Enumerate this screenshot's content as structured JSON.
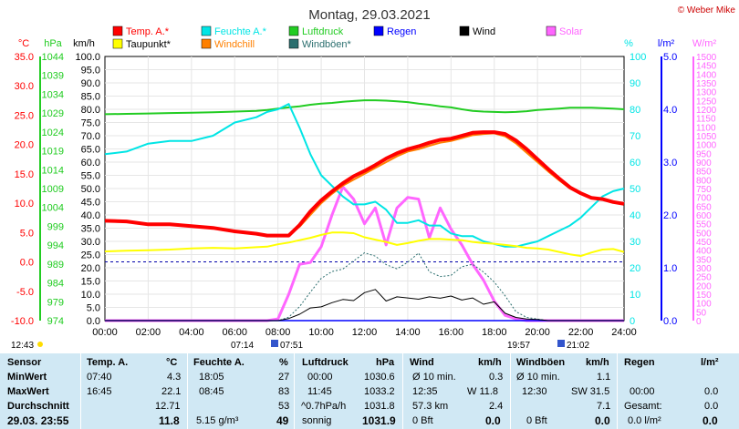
{
  "title": "Montag, 29.03.2021",
  "credit": "© Weber Mike",
  "colors": {
    "temp": "#ff0000",
    "dew": "#ffff00",
    "humidity": "#00e5e5",
    "windchill": "#ff8000",
    "pressure": "#22cc22",
    "gust": "#2a6e6e",
    "rain": "#0000ff",
    "wind": "#000000",
    "solar": "#ff66ff"
  },
  "legend": [
    {
      "label": "Temp. A.*",
      "key": "temp"
    },
    {
      "label": "Feuchte A.*",
      "key": "humidity"
    },
    {
      "label": "Luftdruck",
      "key": "pressure"
    },
    {
      "label": "Regen",
      "key": "rain"
    },
    {
      "label": "Wind",
      "key": "wind"
    },
    {
      "label": "Solar",
      "key": "solar"
    },
    {
      "label": "Taupunkt*",
      "key": "dew"
    },
    {
      "label": "Windchill",
      "key": "windchill"
    },
    {
      "label": "Windböen*",
      "key": "gust"
    }
  ],
  "axis_headers": {
    "temp": "°C",
    "pressure": "hPa",
    "wind": "km/h",
    "humidity": "%",
    "rain": "l/m²",
    "solar": "W/m²"
  },
  "axis_ticks": {
    "temp": [
      "35.0",
      "30.0",
      "25.0",
      "20.0",
      "15.0",
      "10.0",
      "5.0",
      "0.0",
      "-5.0",
      "-10.0"
    ],
    "pressure": [
      "1044",
      "1039",
      "1034",
      "1029",
      "1024",
      "1019",
      "1014",
      "1009",
      "1004",
      "999",
      "994",
      "989",
      "984",
      "979",
      "974"
    ],
    "wind": [
      "100.0",
      "95.0",
      "90.0",
      "85.0",
      "80.0",
      "75.0",
      "70.0",
      "65.0",
      "60.0",
      "55.0",
      "50.0",
      "45.0",
      "40.0",
      "35.0",
      "30.0",
      "25.0",
      "20.0",
      "15.0",
      "10.0",
      "5.0",
      "0.0"
    ],
    "humidity": [
      "100",
      "90",
      "80",
      "70",
      "60",
      "50",
      "40",
      "30",
      "20",
      "10",
      "0"
    ],
    "rain": [
      "5.0",
      "4.0",
      "3.0",
      "2.0",
      "1.0",
      "0.0"
    ],
    "solar": [
      "1500",
      "1450",
      "1400",
      "1350",
      "1300",
      "1250",
      "1200",
      "1150",
      "1100",
      "1050",
      "1000",
      "950",
      "900",
      "850",
      "800",
      "750",
      "700",
      "650",
      "600",
      "550",
      "500",
      "450",
      "400",
      "350",
      "300",
      "250",
      "200",
      "150",
      "100",
      "50",
      "0"
    ],
    "time": [
      "00:00",
      "02:00",
      "04:00",
      "06:00",
      "08:00",
      "10:00",
      "12:00",
      "14:00",
      "16:00",
      "18:00",
      "20:00",
      "22:00",
      "24:00"
    ]
  },
  "sun_times": {
    "now": "12:43",
    "sunrise_a": "07:14",
    "sunrise_b": "07:51",
    "sunset_a": "19:57",
    "sunset_b": "21:02"
  },
  "chart_data": {
    "type": "line",
    "title": "Montag, 29.03.2021",
    "xlabel": "",
    "xlim": [
      "00:00",
      "24:00"
    ],
    "x_hours": [
      0,
      1,
      2,
      3,
      4,
      5,
      6,
      7,
      7.5,
      8,
      8.5,
      9,
      9.5,
      10,
      10.5,
      11,
      11.5,
      12,
      12.5,
      13,
      13.5,
      14,
      14.5,
      15,
      15.5,
      16,
      16.5,
      17,
      17.5,
      18,
      18.5,
      19,
      19.5,
      20,
      20.5,
      21,
      21.5,
      22,
      22.5,
      23,
      23.5,
      24
    ],
    "series": [
      {
        "name": "Temp. A.*",
        "unit": "°C",
        "ylim": [
          -10,
          35
        ],
        "values": [
          7.0,
          6.9,
          6.4,
          6.4,
          6.1,
          5.8,
          5.2,
          4.8,
          4.5,
          4.5,
          4.5,
          6.3,
          8.6,
          10.5,
          12.0,
          13.4,
          14.6,
          15.5,
          16.5,
          17.6,
          18.5,
          19.2,
          19.7,
          20.3,
          20.8,
          21.0,
          21.5,
          22.0,
          22.1,
          22.1,
          21.8,
          20.7,
          19.2,
          17.5,
          15.8,
          14.2,
          12.7,
          11.7,
          10.9,
          10.7,
          10.2,
          9.9
        ]
      },
      {
        "name": "Taupunkt*",
        "unit": "°C",
        "ylim": [
          -10,
          35
        ],
        "values": [
          1.8,
          1.9,
          2.0,
          2.1,
          2.3,
          2.4,
          2.3,
          2.5,
          2.6,
          3.0,
          3.3,
          3.7,
          4.1,
          4.6,
          5.0,
          5.0,
          4.9,
          4.2,
          3.8,
          3.4,
          2.9,
          3.2,
          3.6,
          3.9,
          3.9,
          3.8,
          3.7,
          3.4,
          3.2,
          3.1,
          2.9,
          2.7,
          2.4,
          2.3,
          2.1,
          1.7,
          1.3,
          1.0,
          1.6,
          2.1,
          2.2,
          1.7
        ]
      },
      {
        "name": "Windchill",
        "unit": "°C",
        "ylim": [
          -10,
          35
        ],
        "values": [
          7.0,
          6.9,
          6.4,
          6.4,
          6.1,
          5.8,
          5.2,
          4.8,
          4.5,
          4.5,
          4.5,
          6.0,
          8.0,
          10.0,
          11.6,
          13.0,
          14.0,
          15.0,
          16.0,
          17.0,
          18.0,
          18.8,
          19.2,
          19.8,
          20.3,
          20.6,
          21.1,
          21.6,
          21.8,
          21.9,
          21.4,
          20.2,
          18.6,
          17.0,
          15.4,
          13.9,
          12.5,
          11.6,
          10.9,
          10.6,
          10.2,
          9.9
        ]
      },
      {
        "name": "Feuchte A.*",
        "unit": "%",
        "ylim": [
          0,
          100
        ],
        "values": [
          63,
          64,
          67,
          68,
          68,
          70,
          75,
          77,
          79,
          80,
          82,
          73,
          63,
          55,
          51,
          47,
          44,
          44,
          45,
          42,
          37,
          37,
          38,
          36,
          36,
          33,
          32,
          32,
          30,
          29,
          28,
          28,
          29,
          30,
          32,
          34,
          36,
          39,
          43,
          47,
          49,
          50
        ]
      },
      {
        "name": "Luftdruck",
        "unit": "hPa",
        "ylim": [
          974,
          1044
        ],
        "values": [
          1028.7,
          1028.8,
          1028.9,
          1029.0,
          1029.1,
          1029.2,
          1029.4,
          1029.6,
          1029.8,
          1030.2,
          1030.5,
          1030.8,
          1031.2,
          1031.5,
          1031.7,
          1032.0,
          1032.2,
          1032.4,
          1032.4,
          1032.3,
          1032.1,
          1031.9,
          1031.5,
          1031.2,
          1030.8,
          1030.5,
          1030.0,
          1029.6,
          1029.4,
          1029.3,
          1029.2,
          1029.3,
          1029.5,
          1029.8,
          1030.0,
          1030.2,
          1030.4,
          1030.4,
          1030.4,
          1030.3,
          1030.2,
          1030.0
        ]
      },
      {
        "name": "Wind",
        "unit": "km/h",
        "ylim": [
          0,
          100
        ],
        "values": [
          0,
          0,
          0,
          0,
          0,
          0,
          0,
          0,
          0,
          0,
          0.8,
          2.4,
          4.8,
          5.2,
          6.8,
          8.0,
          7.6,
          10.6,
          11.8,
          7.4,
          9.0,
          8.6,
          8.1,
          9.0,
          8.5,
          9.3,
          7.8,
          8.6,
          6.2,
          7.1,
          2.8,
          1.2,
          0.6,
          0.4,
          0,
          0,
          0,
          0,
          0,
          0,
          0,
          0
        ]
      },
      {
        "name": "Windböen*",
        "unit": "km/h",
        "ylim": [
          0,
          100
        ],
        "values": [
          0,
          0,
          0,
          0,
          0,
          0,
          0,
          0,
          0,
          0,
          1.3,
          5.3,
          10.8,
          16.0,
          18.6,
          19.5,
          22.6,
          25.7,
          24.4,
          21.2,
          19.6,
          22.1,
          25.6,
          18.5,
          16.7,
          17.1,
          20.4,
          21.3,
          18.4,
          14.6,
          9.4,
          3.4,
          1.2,
          0.6,
          0,
          0,
          0,
          0,
          0,
          0,
          0,
          0
        ]
      },
      {
        "name": "Solar",
        "unit": "W/m²",
        "ylim": [
          0,
          1500
        ],
        "values": [
          0,
          0,
          0,
          0,
          0,
          0,
          0,
          0,
          0,
          10,
          150,
          320,
          330,
          420,
          600,
          760,
          690,
          550,
          640,
          430,
          640,
          700,
          690,
          470,
          640,
          520,
          430,
          320,
          230,
          110,
          30,
          10,
          0,
          0,
          0,
          0,
          0,
          0,
          0,
          0,
          0,
          0
        ]
      },
      {
        "name": "Regen",
        "unit": "l/m²",
        "ylim": [
          0,
          5
        ],
        "values": [
          0,
          0,
          0,
          0,
          0,
          0,
          0,
          0,
          0,
          0,
          0,
          0,
          0,
          0,
          0,
          0,
          0,
          0,
          0,
          0,
          0,
          0,
          0,
          0,
          0,
          0,
          0,
          0,
          0,
          0,
          0,
          0,
          0,
          0,
          0,
          0,
          0,
          0,
          0,
          0,
          0,
          0
        ]
      }
    ],
    "reference_line": {
      "axis": "temp",
      "value": 0,
      "style": "dashed"
    }
  },
  "stats": {
    "row_labels": [
      "Sensor",
      "MinWert",
      "MaxWert",
      "Durchschnitt",
      "29.03. 23:55"
    ],
    "temp": {
      "header": "Temp. A.",
      "unit": "°C",
      "min_time": "07:40",
      "min": "4.3",
      "max_time": "16:45",
      "max": "22.1",
      "avg": "12.71",
      "current": "11.8"
    },
    "humidity": {
      "header": "Feuchte A.",
      "unit": "%",
      "min_time": "18:05",
      "min": "27",
      "max_time": "08:45",
      "max": "83",
      "avg": "53",
      "extra": "5.15 g/m³",
      "current": "49"
    },
    "pressure": {
      "header": "Luftdruck",
      "unit": "hPa",
      "min_time": "00:00",
      "min": "1030.6",
      "max_time": "11:45",
      "max": "1033.2",
      "trend": "^0.7hPa/h",
      "avg": "1031.8",
      "condition": "sonnig",
      "current": "1031.9"
    },
    "wind": {
      "header": "Wind",
      "unit": "km/h",
      "r1_label": "Ø 10 min.",
      "r1_value": "0.3",
      "r2_time": "12:35",
      "r2_value": "W 11.8",
      "r3_label": "57.3 km",
      "r3_value": "2.4",
      "r4_label": "0 Bft",
      "current": "0.0"
    },
    "gust": {
      "header": "Windböen",
      "unit": "km/h",
      "r1_label": "Ø 10 min.",
      "r1_value": "1.1",
      "r2_time": "12:30",
      "r2_value": "SW 31.5",
      "r3_value": "7.1",
      "r4_label": "0 Bft",
      "current": "0.0"
    },
    "rain": {
      "header": "Regen",
      "unit": "l/m²",
      "r2_time": "00:00",
      "r2_value": "0.0",
      "r3_label": "Gesamt:",
      "r3_value": "0.0",
      "r4_label": "0.0 l/m²",
      "current": "0.0"
    }
  }
}
